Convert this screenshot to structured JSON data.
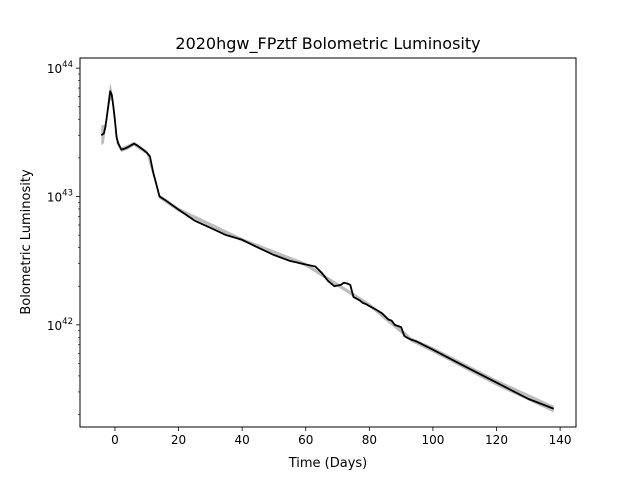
{
  "chart_data": {
    "type": "line",
    "title": "2020hgw_FPztf Bolometric Luminosity",
    "xlabel": "Time (Days)",
    "ylabel": "Bolometric Luminosity",
    "xlim": [
      -11,
      145
    ],
    "ylim": [
      1.6e+41,
      1.2e+44
    ],
    "yscale": "log",
    "grid": false,
    "x_ticks": [
      0,
      20,
      40,
      60,
      80,
      100,
      120,
      140
    ],
    "y_ticks": [
      {
        "value": 1e+42,
        "base": "10",
        "exp": "42"
      },
      {
        "value": 1e+43,
        "base": "10",
        "exp": "43"
      },
      {
        "value": 1e+44,
        "base": "10",
        "exp": "44"
      }
    ],
    "colors": {
      "line": "#000000",
      "band": "#b5b5b5"
    },
    "series": [
      {
        "x": [
          -4.3,
          -3.5,
          -3,
          -2.5,
          -2,
          -1.5,
          -1,
          -0.5,
          0,
          0.5,
          1,
          2,
          3,
          4,
          5,
          6,
          7,
          8,
          9,
          10,
          11,
          12,
          13,
          14,
          16,
          20,
          25,
          30,
          35,
          40,
          45,
          50,
          55,
          60,
          63,
          65,
          67,
          69,
          71,
          72,
          73,
          74,
          75,
          77,
          78,
          79,
          80,
          82,
          84,
          86,
          87,
          88,
          89,
          90,
          91,
          92,
          93,
          95,
          100,
          110,
          120,
          130,
          138
        ],
        "y": [
          3e+43,
          3.1e+43,
          3.5e+43,
          4.3e+43,
          5.3e+43,
          6.6e+43,
          6.2e+43,
          5e+43,
          3.9e+43,
          2.9e+43,
          2.6e+43,
          2.32e+43,
          2.36e+43,
          2.42e+43,
          2.5e+43,
          2.58e+43,
          2.5e+43,
          2.4e+43,
          2.3e+43,
          2.2e+43,
          2.05e+43,
          1.55e+43,
          1.25e+43,
          1e+43,
          9.3e+42,
          7.9e+42,
          6.5e+42,
          5.7e+42,
          5e+42,
          4.6e+42,
          4e+42,
          3.5e+42,
          3.15e+42,
          2.95e+42,
          2.85e+42,
          2.55e+42,
          2.2e+42,
          2e+42,
          2.05e+42,
          2.13e+42,
          2.1e+42,
          2.05e+42,
          1.65e+42,
          1.55e+42,
          1.48e+42,
          1.45e+42,
          1.4e+42,
          1.32e+42,
          1.23e+42,
          1.1e+42,
          1.08e+42,
          1e+42,
          9.8e+41,
          9.6e+41,
          8.2e+41,
          7.9e+41,
          7.7e+41,
          7.4e+41,
          6.4e+41,
          4.75e+41,
          3.55e+41,
          2.65e+41,
          2.22e+41
        ],
        "band_x": [
          -4.3,
          -3.5,
          -3,
          -2.5,
          -2,
          -1.5,
          -1,
          -0.5,
          0,
          0.5,
          1,
          2,
          4,
          6,
          10,
          14,
          20,
          40,
          60,
          80,
          92,
          93,
          100,
          120,
          138
        ],
        "band_upper": [
          3.6e+43,
          3.6e+43,
          3.7e+43,
          4.8e+43,
          6.2e+43,
          7.7e+43,
          6.8e+43,
          5.6e+43,
          4.4e+43,
          3.3e+43,
          2.75e+43,
          2.42e+43,
          2.52e+43,
          2.68e+43,
          2.28e+43,
          1.04e+43,
          8.2e+42,
          4.75e+42,
          3.05e+42,
          1.48e+42,
          8.5e+41,
          8e+41,
          6.7e+41,
          3.75e+41,
          2.34e+41
        ],
        "band_lower": [
          2.5e+43,
          2.6e+43,
          3.2e+43,
          3.9e+43,
          4.7e+43,
          5.6e+43,
          5.6e+43,
          4.5e+43,
          3.5e+43,
          2.6e+43,
          2.45e+43,
          2.22e+43,
          2.32e+43,
          2.48e+43,
          2.12e+43,
          9.6e+42,
          7.6e+42,
          4.45e+42,
          2.85e+42,
          1.38e+42,
          7.8e+41,
          7.4e+41,
          6.1e+41,
          3.35e+41,
          2.08e+41
        ]
      }
    ]
  }
}
